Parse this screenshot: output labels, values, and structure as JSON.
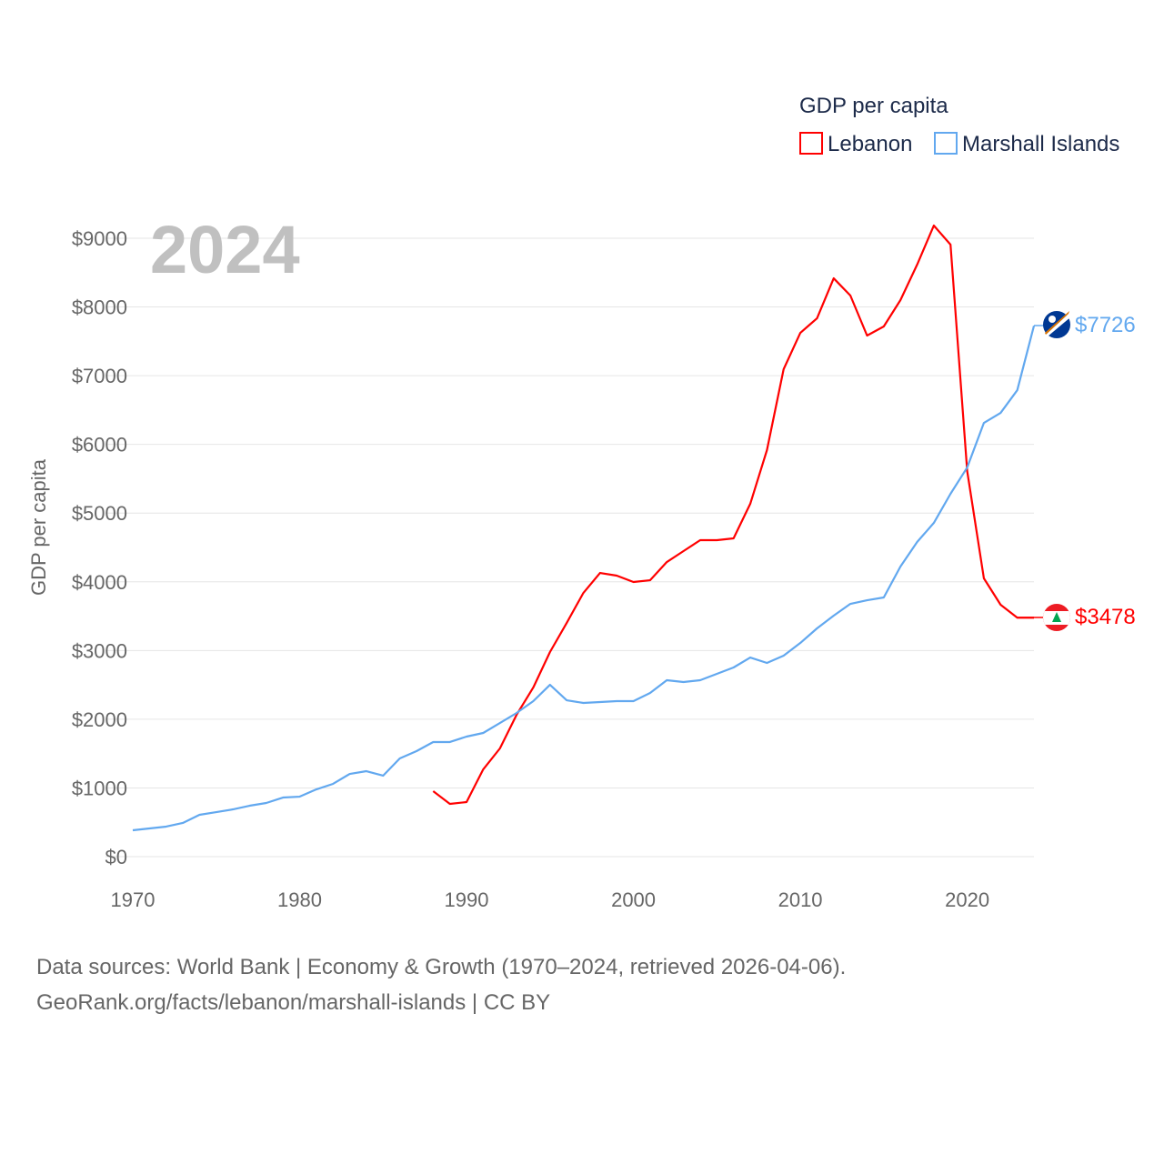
{
  "chart_data": {
    "type": "line",
    "title": "GDP per capita",
    "year_label": "2024",
    "ylabel": "GDP per capita",
    "xlabel": "",
    "xlim": [
      1970,
      2024
    ],
    "ylim": [
      0,
      9000
    ],
    "x_ticks": [
      1970,
      1980,
      1990,
      2000,
      2010,
      2020
    ],
    "y_ticks": [
      0,
      1000,
      2000,
      3000,
      4000,
      5000,
      6000,
      7000,
      8000,
      9000
    ],
    "y_tick_labels": [
      "$0",
      "$1000",
      "$2000",
      "$3000",
      "$4000",
      "$5000",
      "$6000",
      "$7000",
      "$8000",
      "$9000"
    ],
    "grid": true,
    "legend_placement": "top-right",
    "series": [
      {
        "name": "Lebanon",
        "color": "#ff0000",
        "end_label": "$3478",
        "x": [
          1988,
          1989,
          1990,
          1991,
          1992,
          1993,
          1994,
          1995,
          1996,
          1997,
          1998,
          1999,
          2000,
          2001,
          2002,
          2003,
          2004,
          2005,
          2006,
          2007,
          2008,
          2009,
          2010,
          2011,
          2012,
          2013,
          2014,
          2015,
          2016,
          2017,
          2018,
          2019,
          2020,
          2021,
          2022,
          2023,
          2024
        ],
        "values": [
          953,
          768,
          794,
          1270,
          1575,
          2065,
          2462,
          2978,
          3401,
          3838,
          4129,
          4090,
          3997,
          4023,
          4288,
          4447,
          4606,
          4606,
          4632,
          5135,
          5916,
          7094,
          7623,
          7835,
          8417,
          8166,
          7584,
          7716,
          8100,
          8616,
          9185,
          8907,
          5611,
          4050,
          3666,
          3478,
          3478
        ]
      },
      {
        "name": "Marshall Islands",
        "color": "#62a8ef",
        "end_label": "$7726",
        "x": [
          1970,
          1971,
          1972,
          1973,
          1974,
          1975,
          1976,
          1977,
          1978,
          1979,
          1980,
          1981,
          1982,
          1983,
          1984,
          1985,
          1986,
          1987,
          1988,
          1989,
          1990,
          1991,
          1992,
          1993,
          1994,
          1995,
          1996,
          1997,
          1998,
          1999,
          2000,
          2001,
          2002,
          2003,
          2004,
          2005,
          2006,
          2007,
          2008,
          2009,
          2010,
          2011,
          2012,
          2013,
          2014,
          2015,
          2016,
          2017,
          2018,
          2019,
          2020,
          2021,
          2022,
          2023,
          2024
        ],
        "values": [
          384,
          410,
          437,
          490,
          609,
          648,
          688,
          741,
          781,
          860,
          873,
          979,
          1059,
          1204,
          1244,
          1178,
          1429,
          1535,
          1668,
          1668,
          1747,
          1800,
          1945,
          2091,
          2263,
          2501,
          2276,
          2237,
          2250,
          2263,
          2263,
          2382,
          2568,
          2541,
          2568,
          2660,
          2753,
          2898,
          2819,
          2925,
          3110,
          3322,
          3507,
          3679,
          3732,
          3772,
          4222,
          4579,
          4857,
          5281,
          5664,
          6313,
          6458,
          6789,
          7726
        ]
      }
    ]
  },
  "footer": {
    "line1": "Data sources: World Bank | Economy & Growth (1970–2024, retrieved 2026-04-06).",
    "line2": "GeoRank.org/facts/lebanon/marshall-islands | CC BY"
  }
}
